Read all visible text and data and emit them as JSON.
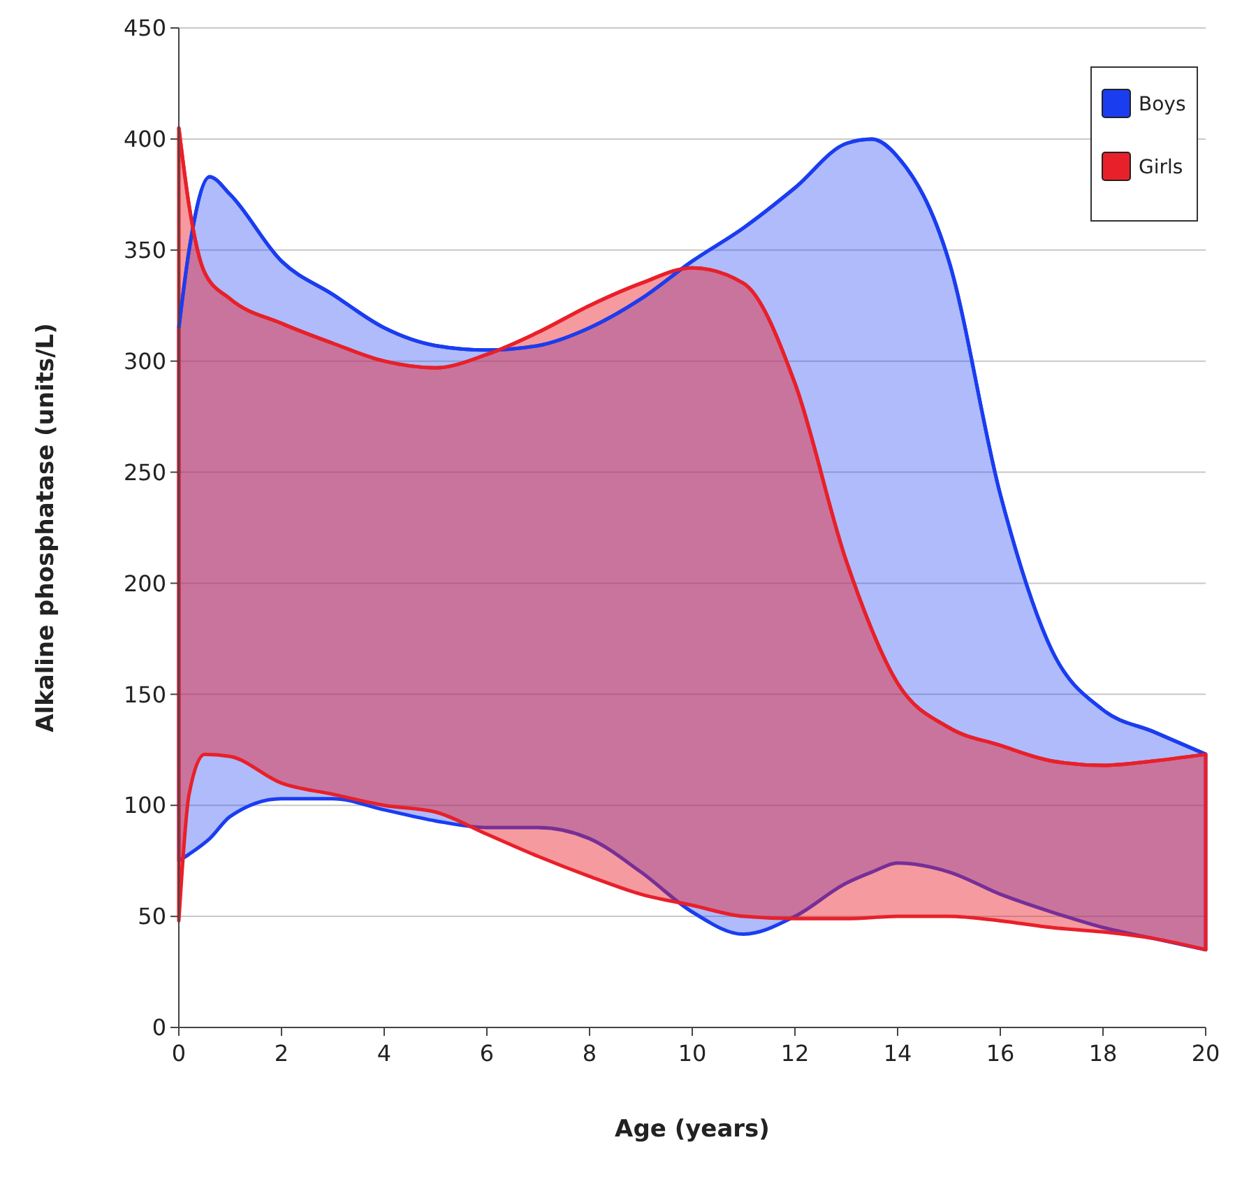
{
  "chart_data": {
    "type": "line",
    "xlabel": "Age (years)",
    "ylabel": "Alkaline phosphatase (units/L)",
    "xlim": [
      0,
      20
    ],
    "xticks": [
      0,
      2,
      4,
      6,
      8,
      10,
      12,
      14,
      16,
      18,
      20
    ],
    "ylim": [
      0,
      450
    ],
    "yticks": [
      0,
      50,
      100,
      150,
      200,
      250,
      300,
      350,
      400,
      450
    ],
    "grid": "y",
    "legend": "top right",
    "series": [
      {
        "name": "Boys",
        "color": "#1a3df0",
        "x": [
          0,
          0.2,
          0.6,
          1,
          2,
          3,
          4,
          5,
          6,
          7,
          8,
          9,
          10,
          11,
          12,
          13,
          13.5,
          14,
          15,
          16,
          17,
          18,
          19,
          20
        ],
        "values": [
          315,
          350,
          383,
          375,
          345,
          330,
          315,
          307,
          305,
          307,
          315,
          328,
          345,
          360,
          378,
          398,
          400,
          392,
          345,
          240,
          170,
          143,
          133,
          123
        ],
        "lower": [
          75,
          78,
          85,
          95,
          103,
          103,
          98,
          93,
          90,
          90,
          85,
          70,
          52,
          42,
          50,
          65,
          70,
          74,
          70,
          60,
          52,
          45,
          40,
          35
        ],
        "upper": [
          315,
          350,
          383,
          375,
          345,
          330,
          315,
          307,
          305,
          307,
          315,
          328,
          345,
          360,
          378,
          398,
          400,
          392,
          345,
          240,
          170,
          143,
          133,
          123
        ]
      },
      {
        "name": "Girls",
        "color": "#e8202a",
        "x": [
          0,
          0.2,
          0.5,
          1,
          2,
          3,
          4,
          5,
          6,
          7,
          8,
          9,
          10,
          11,
          12,
          13,
          14,
          15,
          16,
          17,
          18,
          19,
          20
        ],
        "values": [
          405,
          370,
          340,
          328,
          317,
          308,
          300,
          297,
          303,
          313,
          325,
          335,
          342,
          335,
          290,
          210,
          155,
          135,
          127,
          120,
          118,
          120,
          123
        ],
        "lower": [
          48,
          105,
          123,
          122,
          110,
          105,
          100,
          97,
          87,
          77,
          68,
          60,
          55,
          50,
          49,
          49,
          50,
          50,
          48,
          45,
          43,
          40,
          35
        ],
        "upper": [
          405,
          370,
          340,
          328,
          317,
          308,
          300,
          297,
          303,
          313,
          325,
          335,
          342,
          335,
          290,
          210,
          155,
          135,
          127,
          120,
          118,
          120,
          123
        ]
      }
    ]
  }
}
